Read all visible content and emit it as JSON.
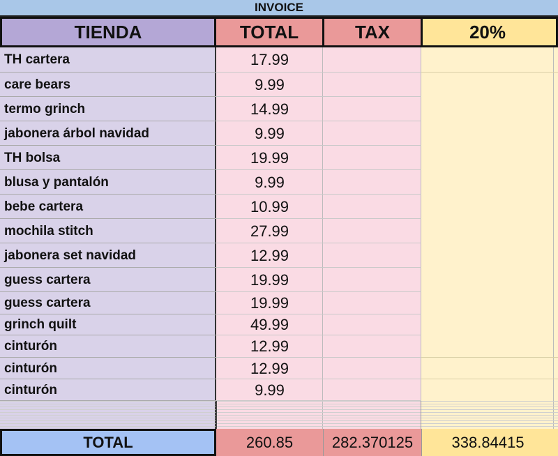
{
  "title": "INVOICE",
  "headers": {
    "tienda": "TIENDA",
    "total": "TOTAL",
    "tax": "TAX",
    "pct": "20%"
  },
  "rows": [
    {
      "name": "TH cartera",
      "total": "17.99"
    },
    {
      "name": "care bears",
      "total": "9.99"
    },
    {
      "name": "termo grinch",
      "total": "14.99"
    },
    {
      "name": "jabonera árbol navidad",
      "total": "9.99"
    },
    {
      "name": "TH bolsa",
      "total": "19.99"
    },
    {
      "name": "blusa y pantalón",
      "total": "9.99"
    },
    {
      "name": "bebe cartera",
      "total": "10.99"
    },
    {
      "name": "mochila stitch",
      "total": "27.99"
    },
    {
      "name": "jabonera set navidad",
      "total": "12.99"
    },
    {
      "name": "guess cartera",
      "total": "19.99"
    },
    {
      "name": "guess cartera",
      "total": "19.99"
    },
    {
      "name": "grinch quilt",
      "total": "49.99"
    },
    {
      "name": "cinturón",
      "total": "12.99"
    },
    {
      "name": "cinturón",
      "total": "12.99"
    },
    {
      "name": "cinturón",
      "total": "9.99"
    }
  ],
  "totals": {
    "label": "TOTAL",
    "total": "260.85",
    "tax": "282.370125",
    "pct": "338.84415"
  },
  "colors": {
    "title_bg": "#a9c7e8",
    "tienda_header": "#b4a7d6",
    "total_header": "#ea9999",
    "pct_header": "#ffe599",
    "tienda_body": "#d9d2e9",
    "total_body": "#fadbe4",
    "pct_body": "#fff2cc",
    "total_label_bg": "#a4c2f4"
  }
}
